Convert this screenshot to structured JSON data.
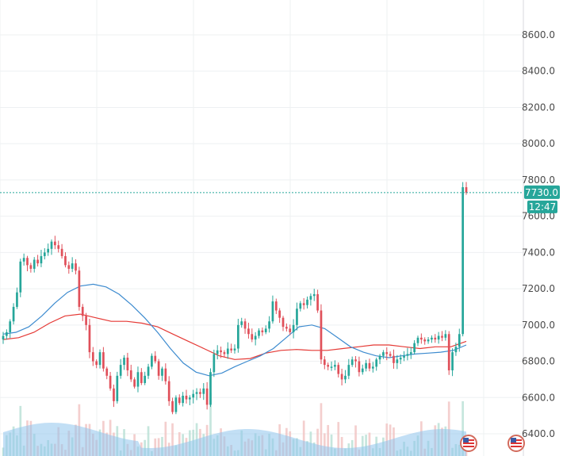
{
  "chart_data": {
    "type": "candlestick",
    "title": "",
    "xlabel": "",
    "ylabel": "",
    "ylim": [
      6350,
      8800
    ],
    "y_ticks": [
      "8600.0",
      "8400.0",
      "8200.0",
      "8000.0",
      "7800.0",
      "7600.0",
      "7400.0",
      "7200.0",
      "7000.0",
      "6800.0",
      "6600.0",
      "6400.0"
    ],
    "grid": true,
    "colors": {
      "up": "#26a69a",
      "down": "#e0505a",
      "ma_fast": "#3d8bcf",
      "ma_slow": "#e53935",
      "price_line": "#26a69a"
    },
    "last_price": {
      "value": 7730,
      "label": "7730.0",
      "timer": "12:47"
    },
    "candles_close": [
      6940,
      6960,
      7020,
      7100,
      7180,
      7350,
      7370,
      7330,
      7310,
      7360,
      7340,
      7380,
      7400,
      7420,
      7460,
      7440,
      7420,
      7380,
      7330,
      7310,
      7340,
      7300,
      7100,
      7050,
      7000,
      6850,
      6800,
      6780,
      6850,
      6760,
      6720,
      6650,
      6580,
      6720,
      6780,
      6820,
      6750,
      6700,
      6660,
      6740,
      6680,
      6720,
      6770,
      6830,
      6800,
      6720,
      6760,
      6690,
      6580,
      6520,
      6600,
      6570,
      6610,
      6590,
      6600,
      6620,
      6630,
      6620,
      6650,
      6560,
      6740,
      6840,
      6860,
      6850,
      6840,
      6870,
      6860,
      6870,
      7000,
      7020,
      6980,
      6950,
      6920,
      6940,
      6970,
      6960,
      6980,
      7020,
      7130,
      7080,
      7040,
      6990,
      6980,
      6960,
      7000,
      7090,
      7120,
      7110,
      7140,
      7160,
      7170,
      7080,
      6810,
      6780,
      6770,
      6770,
      6780,
      6730,
      6700,
      6720,
      6780,
      6810,
      6800,
      6740,
      6760,
      6790,
      6760,
      6770,
      6810,
      6830,
      6850,
      6840,
      6830,
      6790,
      6810,
      6820,
      6830,
      6840,
      6850,
      6900,
      6930,
      6920,
      6910,
      6920,
      6930,
      6920,
      6940,
      6930,
      6950,
      6750,
      6850,
      6880,
      6950,
      7760,
      7730
    ],
    "ma_fast": [
      6950,
      6960,
      6990,
      7050,
      7120,
      7180,
      7215,
      7225,
      7210,
      7170,
      7110,
      7040,
      6960,
      6870,
      6790,
      6740,
      6720,
      6735,
      6770,
      6800,
      6830,
      6870,
      6930,
      6990,
      7000,
      6980,
      6930,
      6880,
      6850,
      6830,
      6820,
      6830,
      6840,
      6845,
      6850,
      6860,
      6890
    ],
    "ma_slow": [
      6920,
      6930,
      6960,
      7010,
      7050,
      7060,
      7040,
      7020,
      7020,
      7010,
      6990,
      6950,
      6910,
      6870,
      6830,
      6810,
      6815,
      6845,
      6860,
      6865,
      6860,
      6860,
      6870,
      6880,
      6890,
      6890,
      6880,
      6870,
      6880,
      6880,
      6910
    ]
  }
}
